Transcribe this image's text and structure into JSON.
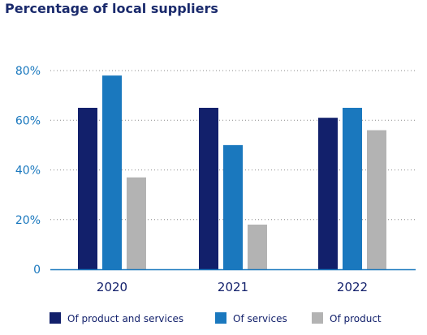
{
  "chart_data": {
    "type": "bar",
    "title": "Percentage of local suppliers",
    "categories": [
      "2020",
      "2021",
      "2022"
    ],
    "series": [
      {
        "name": "Of product and services",
        "color": "#12206b",
        "values": [
          65,
          65,
          61
        ]
      },
      {
        "name": "Of services",
        "color": "#1a78be",
        "values": [
          78,
          50,
          65
        ]
      },
      {
        "name": "Of product",
        "color": "#b3b3b3",
        "values": [
          37,
          18,
          56
        ]
      }
    ],
    "y_ticks": [
      {
        "value": 0,
        "label": "0"
      },
      {
        "value": 20,
        "label": "20%"
      },
      {
        "value": 40,
        "label": "40%"
      },
      {
        "value": 60,
        "label": "60%"
      },
      {
        "value": 80,
        "label": "80%"
      }
    ],
    "ylim": [
      0,
      80
    ],
    "grid": "dotted",
    "legend_position": "bottom",
    "xlabel": "",
    "ylabel": "",
    "axis_color": "#1a78be",
    "title_color": "#1a2a6c"
  }
}
